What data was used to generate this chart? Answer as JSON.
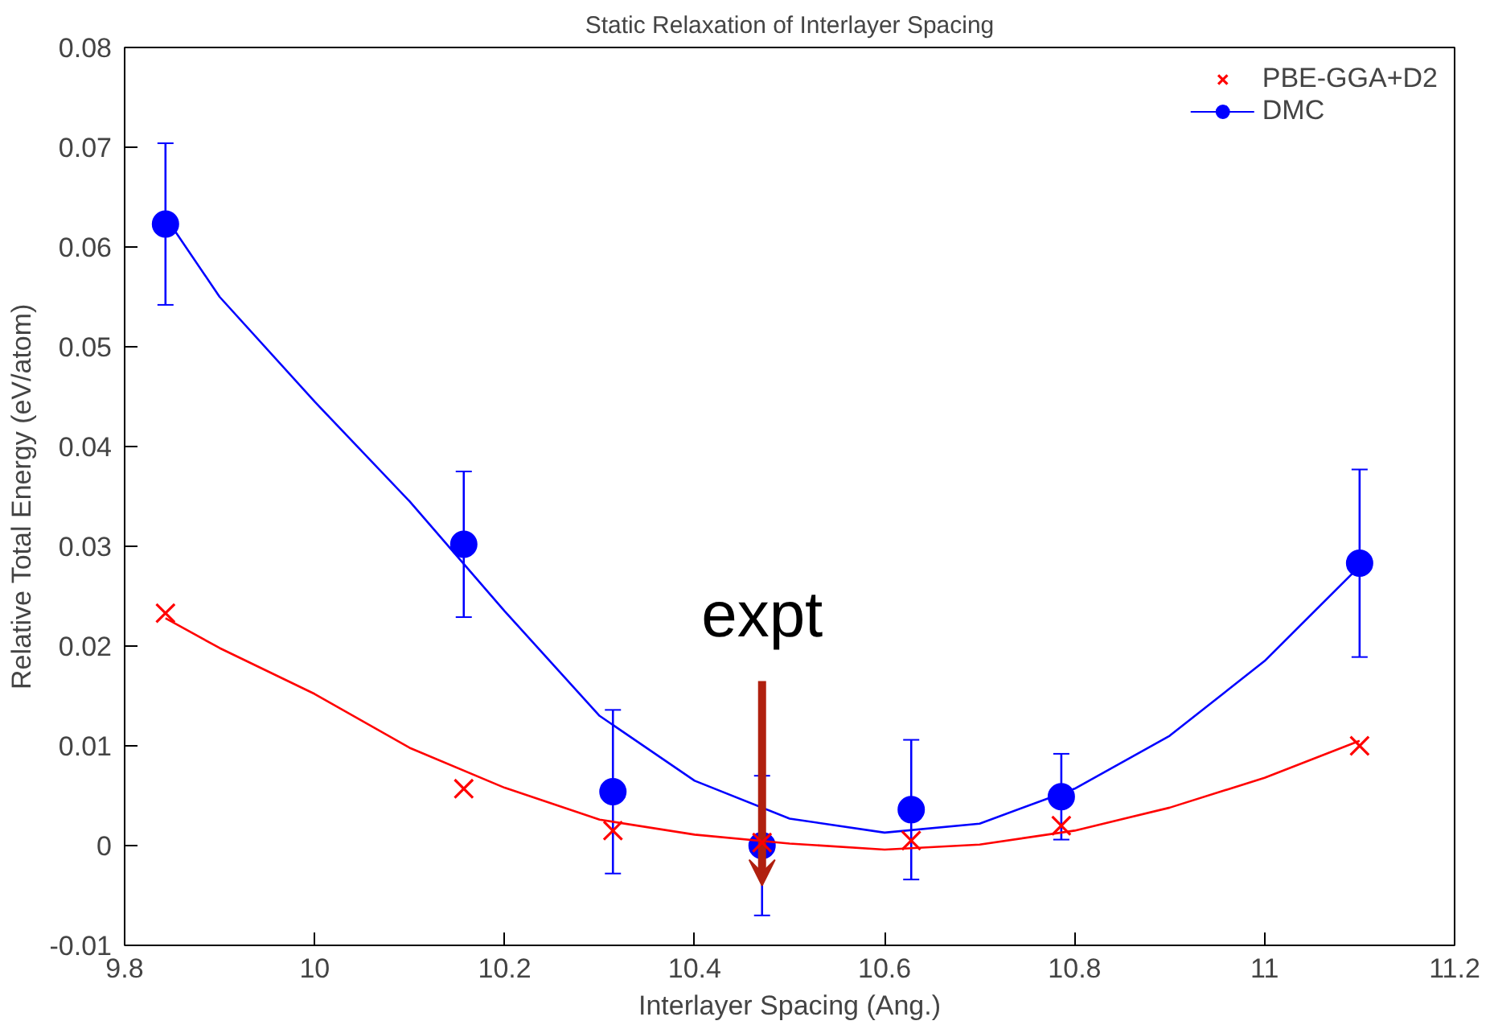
{
  "chart_data": {
    "type": "scatter",
    "title": "Static Relaxation of Interlayer Spacing",
    "xlabel": "Interlayer Spacing (Ang.)",
    "ylabel": "Relative Total Energy (eV/atom)",
    "xlim": [
      9.8,
      11.2
    ],
    "xticks": [
      9.8,
      10,
      10.2,
      10.4,
      10.6,
      10.8,
      11,
      11.2
    ],
    "ylim": [
      -0.01,
      0.08
    ],
    "yticks": [
      -0.01,
      0,
      0.01,
      0.02,
      0.03,
      0.04,
      0.05,
      0.06,
      0.07,
      0.08
    ],
    "grid": false,
    "legend": "top right",
    "series": [
      {
        "name": "PBE-GGA+D2",
        "marker": "cross",
        "color": "#ff0000",
        "x": [
          9.843,
          10.157,
          10.314,
          10.471,
          10.628,
          10.786,
          11.1
        ],
        "values": [
          0.0233,
          0.0057,
          0.0015,
          0.0003,
          0.0005,
          0.002,
          0.01
        ]
      },
      {
        "name": "DMC",
        "marker": "circle",
        "color": "#0000ff",
        "x": [
          9.843,
          10.157,
          10.314,
          10.471,
          10.628,
          10.786,
          11.1
        ],
        "values": [
          0.0623,
          0.0302,
          0.0054,
          0,
          0.0036,
          0.0049,
          0.0283
        ],
        "errors": [
          0.0081,
          0.0073,
          0.0082,
          0.007,
          0.007,
          0.0043,
          0.0094
        ]
      },
      {
        "type": "line",
        "color": "#ff0000",
        "x": [
          9.843,
          9.9,
          10.0,
          10.1,
          10.2,
          10.3,
          10.4,
          10.5,
          10.6,
          10.7,
          10.8,
          10.9,
          11.0,
          11.1
        ],
        "values": [
          0.0228,
          0.0198,
          0.0152,
          0.0098,
          0.0058,
          0.0026,
          0.0011,
          0.0002,
          -0.0004,
          0.0001,
          0.0015,
          0.0038,
          0.0068,
          0.0105
        ]
      },
      {
        "type": "line",
        "color": "#0000ff",
        "x": [
          9.843,
          9.9,
          10.0,
          10.1,
          10.2,
          10.3,
          10.4,
          10.5,
          10.6,
          10.7,
          10.8,
          10.9,
          11.0,
          11.1
        ],
        "values": [
          0.063,
          0.055,
          0.0445,
          0.0345,
          0.0235,
          0.013,
          0.0065,
          0.0027,
          0.0013,
          0.0022,
          0.0057,
          0.011,
          0.0185,
          0.028
        ]
      }
    ],
    "annotations": [
      {
        "text": "expt",
        "x": 10.471,
        "y": -0.004
      }
    ]
  }
}
